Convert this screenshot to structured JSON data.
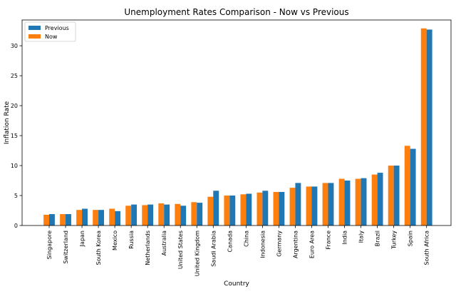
{
  "chart_data": {
    "type": "bar",
    "title": "Unemployment Rates Comparison - Now vs Previous",
    "xlabel": "Country",
    "ylabel": "Inflation Rate",
    "ylim": [
      0,
      34.3
    ],
    "yticks": [
      0,
      5,
      10,
      15,
      20,
      25,
      30
    ],
    "legend_position": "top-left",
    "categories": [
      "Singapore",
      "Switzerland",
      "Japan",
      "South Korea",
      "Mexico",
      "Russia",
      "Netherlands",
      "Australia",
      "United States",
      "United Kingdom",
      "Saudi Arabia",
      "Canada",
      "China",
      "Indonesia",
      "Germany",
      "Argentina",
      "Euro Area",
      "France",
      "India",
      "Italy",
      "Brazil",
      "Turkey",
      "Spain",
      "South Africa"
    ],
    "series": [
      {
        "name": "Previous",
        "color": "#1f77b4",
        "values": [
          1.9,
          1.9,
          2.8,
          2.6,
          2.4,
          3.5,
          3.5,
          3.5,
          3.3,
          3.8,
          5.8,
          5.0,
          5.3,
          5.8,
          5.6,
          7.1,
          6.5,
          7.1,
          7.5,
          7.9,
          8.8,
          10.0,
          12.8,
          32.7
        ]
      },
      {
        "name": "Now",
        "color": "#ff7f0e",
        "values": [
          1.8,
          1.9,
          2.6,
          2.6,
          2.8,
          3.3,
          3.4,
          3.7,
          3.6,
          3.9,
          4.8,
          5.0,
          5.2,
          5.5,
          5.6,
          6.3,
          6.5,
          7.1,
          7.8,
          7.8,
          8.5,
          10.0,
          13.3,
          32.9
        ]
      }
    ]
  }
}
